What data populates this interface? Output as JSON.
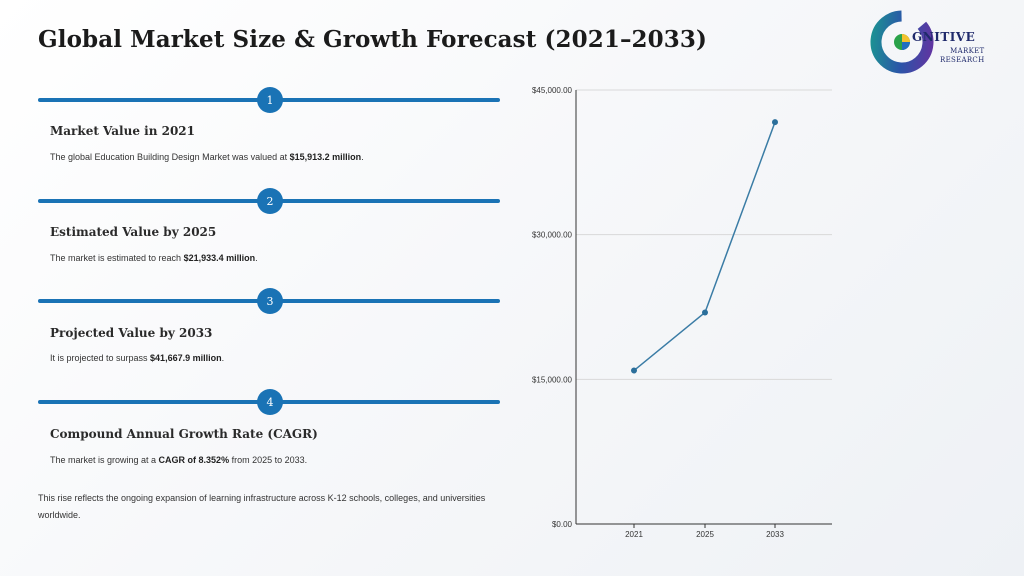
{
  "page": {
    "title": "Global Market Size & Growth Forecast (2021–2033)"
  },
  "logo": {
    "main": "GNITIVE",
    "sub_line1": "MARKET",
    "sub_line2": "RESEARCH"
  },
  "steps": [
    {
      "number": "1",
      "heading": "Market Value in 2021",
      "text_before": "The global Education Building Design Market was valued at ",
      "text_bold": "$15,913.2 million",
      "text_after": "."
    },
    {
      "number": "2",
      "heading": "Estimated Value by 2025",
      "text_before": "The market is estimated to reach ",
      "text_bold": "$21,933.4 million",
      "text_after": "."
    },
    {
      "number": "3",
      "heading": "Projected Value by 2033",
      "text_before": "It is projected to surpass ",
      "text_bold": "$41,667.9 million",
      "text_after": "."
    },
    {
      "number": "4",
      "heading": "Compound Annual Growth Rate (CAGR)",
      "text_before": "The market is growing at a ",
      "text_bold": "CAGR of 8.352%",
      "text_after": " from 2025 to 2033."
    }
  ],
  "footer_note": "This rise reflects the ongoing expansion of learning infrastructure across K-12 schools, colleges, and universities worldwide.",
  "chart_data": {
    "type": "line",
    "categories": [
      "2021",
      "2025",
      "2033"
    ],
    "series": [
      {
        "values": [
          15913.2,
          21933.4,
          41667.9
        ]
      }
    ],
    "ylim": [
      0,
      45000
    ],
    "yticks": [
      0,
      15000,
      30000,
      45000
    ],
    "ytick_labels": [
      "$0.00",
      "$15,000.00",
      "$30,000.00",
      "$45,000.00"
    ],
    "grid": true,
    "line_color": "#3a7ca5"
  }
}
